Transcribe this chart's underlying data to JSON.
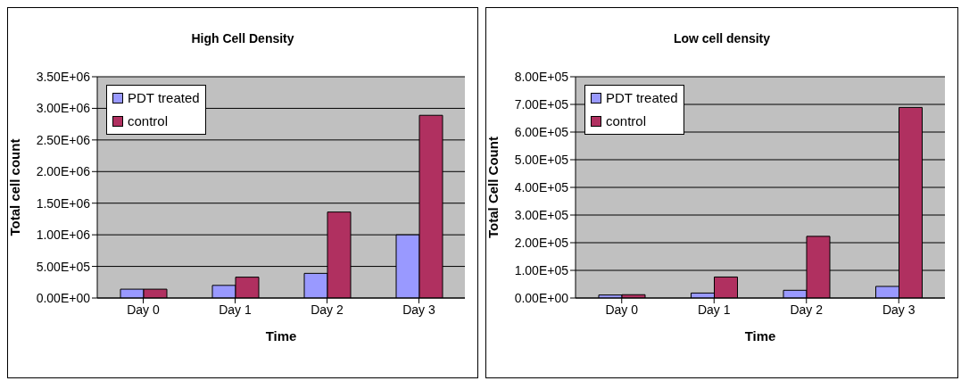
{
  "chart_data": [
    {
      "type": "bar",
      "title": "High Cell Density",
      "xlabel": "Time",
      "ylabel": "Total cell count",
      "categories": [
        "Day 0",
        "Day 1",
        "Day 2",
        "Day 3"
      ],
      "series": [
        {
          "name": "PDT treated",
          "color": "#9999ff",
          "values": [
            140000,
            200000,
            390000,
            1000000
          ]
        },
        {
          "name": "control",
          "color": "#b03060",
          "values": [
            140000,
            330000,
            1360000,
            2890000
          ]
        }
      ],
      "ylim": [
        0,
        3500000
      ],
      "yticks": [
        {
          "value": 0,
          "label": "0.00E+00"
        },
        {
          "value": 500000,
          "label": "5.00E+05"
        },
        {
          "value": 1000000,
          "label": "1.00E+06"
        },
        {
          "value": 1500000,
          "label": "1.50E+06"
        },
        {
          "value": 2000000,
          "label": "2.00E+06"
        },
        {
          "value": 2500000,
          "label": "2.50E+06"
        },
        {
          "value": 3000000,
          "label": "3.00E+06"
        },
        {
          "value": 3500000,
          "label": "3.50E+06"
        }
      ],
      "grid": "y",
      "legend": "top left"
    },
    {
      "type": "bar",
      "title": "Low cell density",
      "xlabel": "Time",
      "ylabel": "Total Cell Count",
      "categories": [
        "Day 0",
        "Day 1",
        "Day 2",
        "Day 3"
      ],
      "series": [
        {
          "name": "PDT treated",
          "color": "#9999ff",
          "values": [
            11000,
            18000,
            28000,
            42000
          ]
        },
        {
          "name": "control",
          "color": "#b03060",
          "values": [
            12000,
            76000,
            223000,
            689000
          ]
        }
      ],
      "ylim": [
        0,
        800000
      ],
      "yticks": [
        {
          "value": 0,
          "label": "0.00E+00"
        },
        {
          "value": 100000,
          "label": "1.00E+05"
        },
        {
          "value": 200000,
          "label": "2.00E+05"
        },
        {
          "value": 300000,
          "label": "3.00E+05"
        },
        {
          "value": 400000,
          "label": "4.00E+05"
        },
        {
          "value": 500000,
          "label": "5.00E+05"
        },
        {
          "value": 600000,
          "label": "6.00E+05"
        },
        {
          "value": 700000,
          "label": "7.00E+05"
        },
        {
          "value": 800000,
          "label": "8.00E+05"
        }
      ],
      "grid": "y",
      "legend": "top left"
    }
  ]
}
